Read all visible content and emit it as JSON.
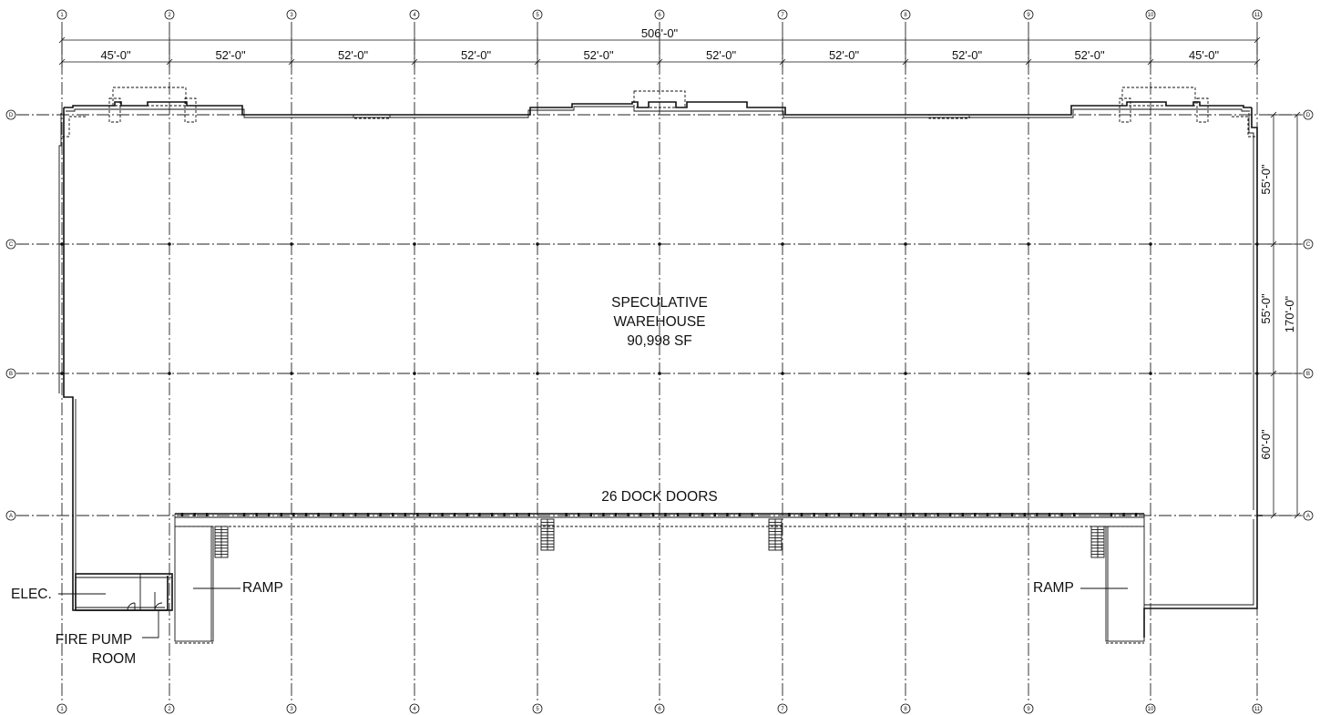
{
  "grid": {
    "column_labels": [
      "1",
      "2",
      "3",
      "4",
      "5",
      "6",
      "7",
      "8",
      "9",
      "10",
      "11"
    ],
    "row_labels": [
      "D",
      "C",
      "B",
      "A"
    ]
  },
  "dimensions": {
    "overall": "506'-0\"",
    "bays": [
      "45'-0\"",
      "52'-0\"",
      "52'-0\"",
      "52'-0\"",
      "52'-0\"",
      "52'-0\"",
      "52'-0\"",
      "52'-0\"",
      "52'-0\"",
      "45'-0\""
    ],
    "side_bays": [
      "55'-0\"",
      "55'-0\"",
      "60'-0\""
    ],
    "side_overall": "170'-0\""
  },
  "labels": {
    "warehouse_line1": "SPECULATIVE",
    "warehouse_line2": "WAREHOUSE",
    "warehouse_area": "90,998 SF",
    "dock_doors": "26 DOCK DOORS",
    "ramp_left": "RAMP",
    "ramp_right": "RAMP",
    "elec": "ELEC.",
    "fire_pump_line1": "FIRE PUMP",
    "fire_pump_line2": "ROOM"
  }
}
